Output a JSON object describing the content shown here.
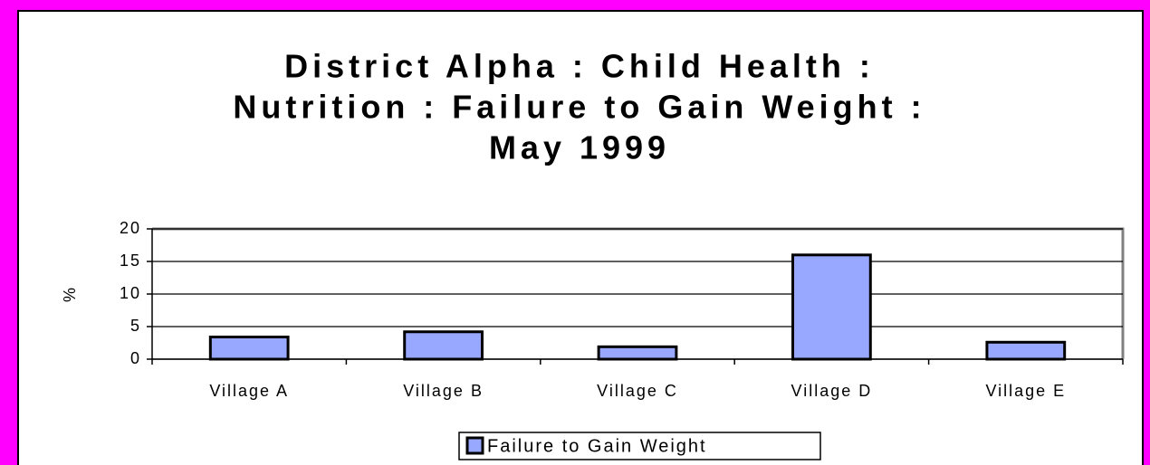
{
  "chart_data": {
    "type": "bar",
    "title": [
      "District Alpha : Child Health :",
      "Nutrition : Failure to Gain Weight :",
      "May 1999"
    ],
    "y_label": "%",
    "categories": [
      "Village A",
      "Village B",
      "Village C",
      "Village D",
      "Village E"
    ],
    "series": [
      {
        "name": "Failure to Gain Weight",
        "color": "#99a8ff",
        "values": [
          3.4,
          4.2,
          1.9,
          16,
          2.6
        ]
      }
    ],
    "ylim": [
      0,
      20
    ],
    "yticks": [
      0,
      5,
      10,
      15,
      20
    ],
    "grid": true,
    "legend": "bottom"
  }
}
